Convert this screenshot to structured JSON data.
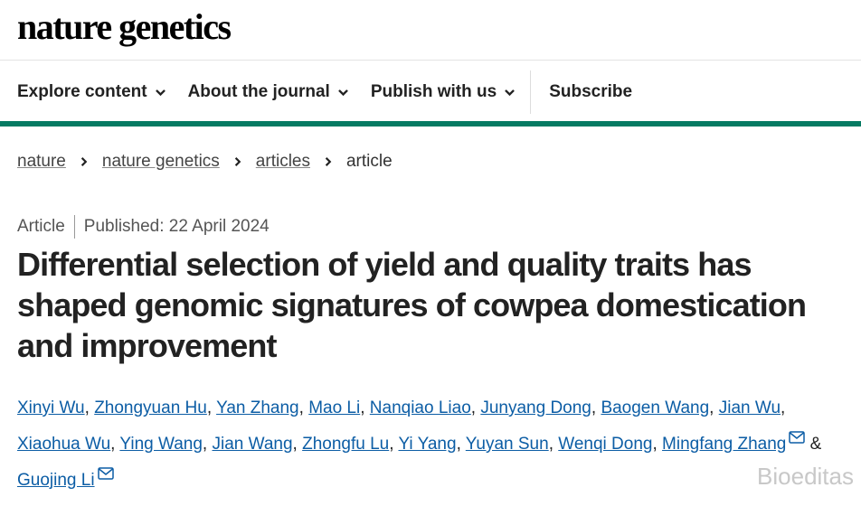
{
  "header": {
    "logo": "nature genetics"
  },
  "nav": {
    "items": [
      "Explore content",
      "About the journal",
      "Publish with us",
      "Subscribe"
    ]
  },
  "breadcrumbs": [
    "nature",
    "nature genetics",
    "articles",
    "article"
  ],
  "article": {
    "type": "Article",
    "published": "Published: 22 April 2024",
    "title": "Differential selection of yield and quality traits has shaped genomic signatures of cowpea domestication and improvement",
    "authors": [
      "Xinyi Wu",
      "Zhongyuan Hu",
      "Yan Zhang",
      "Mao Li",
      "Nanqiao Liao",
      "Junyang Dong",
      "Baogen Wang",
      "Jian Wu",
      "Xiaohua Wu",
      "Ying Wang",
      "Jian Wang",
      "Zhongfu Lu",
      "Yi Yang",
      "Yuyan Sun",
      "Wenqi Dong",
      "Mingfang Zhang",
      "Guojing Li"
    ],
    "separator": ",",
    "final_separator": "&"
  },
  "watermark": "Bioeditas"
}
